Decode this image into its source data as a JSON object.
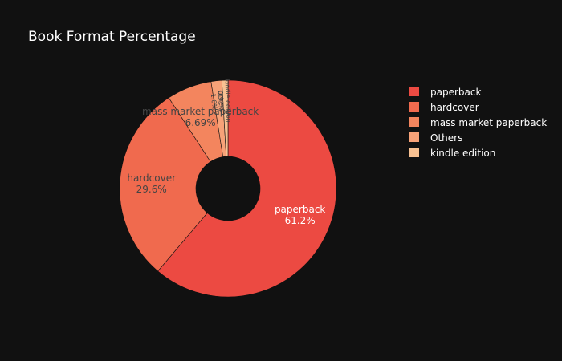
{
  "chart_data": {
    "type": "pie",
    "title": "Book Format Percentage",
    "hole": true,
    "legend_position": "right",
    "slices": [
      {
        "label": "paperback",
        "value": 61.2,
        "text": "61.2%",
        "color": "#ec4a42"
      },
      {
        "label": "hardcover",
        "value": 29.6,
        "text": "29.6%",
        "color": "#f06a4e"
      },
      {
        "label": "mass market paperback",
        "value": 6.69,
        "text": "6.69%",
        "color": "#f3855e"
      },
      {
        "label": "Others",
        "value": 1.6,
        "text": "1.6%",
        "color": "#f7a278"
      },
      {
        "label": "kindle edition",
        "value": 0.91,
        "text": "0.91%",
        "color": "#f8c192"
      }
    ]
  }
}
